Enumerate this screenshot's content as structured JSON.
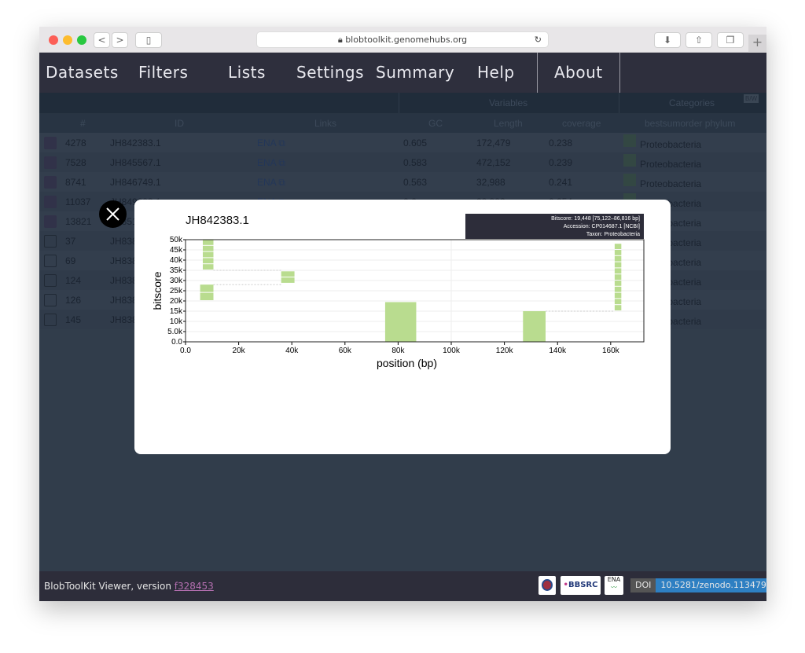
{
  "browser": {
    "url": "blobtoolkit.genomehubs.org",
    "back": "<",
    "forward": ">"
  },
  "nav": {
    "items": [
      "Datasets",
      "Filters",
      "Lists",
      "Settings",
      "Summary",
      "Help",
      "About"
    ]
  },
  "table": {
    "group_headers": {
      "variables": "Variables",
      "categories": "Categories",
      "corner": "B/W"
    },
    "columns": [
      "#",
      "ID",
      "Links",
      "GC",
      "Length",
      "coverage",
      "bestsumorder phylum"
    ],
    "rows": [
      {
        "num": "4278",
        "id": "JH842383.1",
        "link": "ENA",
        "gc": "0.605",
        "length": "172,479",
        "coverage": "0.238",
        "category": "Proteobacteria",
        "selected": true
      },
      {
        "num": "7528",
        "id": "JH845567.1",
        "link": "ENA",
        "gc": "0.583",
        "length": "472,152",
        "coverage": "0.239",
        "category": "Proteobacteria",
        "selected": true
      },
      {
        "num": "8741",
        "id": "JH846749.1",
        "link": "ENA",
        "gc": "0.563",
        "length": "32,988",
        "coverage": "0.241",
        "category": "Proteobacteria",
        "selected": true
      },
      {
        "num": "11037",
        "id": "JH849093.1",
        "link": "ENA",
        "gc": "0.6",
        "length": "22,992",
        "coverage": "0.254",
        "category": "Proteobacteria",
        "selected": true
      },
      {
        "num": "13821",
        "id": "JH851",
        "link": "",
        "gc": "",
        "length": "",
        "coverage": "",
        "category": "Proteobacteria",
        "selected": true
      },
      {
        "num": "37",
        "id": "JH838",
        "link": "",
        "gc": "",
        "length": "",
        "coverage": "",
        "category": "Proteobacteria",
        "selected": false
      },
      {
        "num": "69",
        "id": "JH838",
        "link": "",
        "gc": "",
        "length": "",
        "coverage": "",
        "category": "Proteobacteria",
        "selected": false
      },
      {
        "num": "124",
        "id": "JH838",
        "link": "",
        "gc": "",
        "length": "",
        "coverage": "",
        "category": "Proteobacteria",
        "selected": false
      },
      {
        "num": "126",
        "id": "JH838",
        "link": "",
        "gc": "",
        "length": "",
        "coverage": "",
        "category": "Proteobacteria",
        "selected": false
      },
      {
        "num": "145",
        "id": "JH838",
        "link": "",
        "gc": "",
        "length": "",
        "coverage": "",
        "category": "Proteobacteria",
        "selected": false
      }
    ]
  },
  "modal": {
    "title": "JH842383.1",
    "tooltip": [
      "Bitscore: 19,448 [75,122–86,816 bp]",
      "Accession: CP014687.1 [NCBI]",
      "Taxon: Proteobacteria"
    ]
  },
  "chart_data": {
    "type": "bar",
    "title": "JH842383.1",
    "xlabel": "position (bp)",
    "ylabel": "bitscore",
    "xlim": [
      0,
      172479
    ],
    "ylim": [
      0,
      50000
    ],
    "xticks": [
      "0.0",
      "20k",
      "40k",
      "60k",
      "80k",
      "100k",
      "120k",
      "140k",
      "160k"
    ],
    "yticks": [
      "0.0",
      "5.0k",
      "10k",
      "15k",
      "20k",
      "25k",
      "30k",
      "35k",
      "40k",
      "45k",
      "50k"
    ],
    "color": "#b9dc8f",
    "hits": [
      {
        "start": 6500,
        "end": 10500,
        "bottom": 35000,
        "top": 50000,
        "segments": 5
      },
      {
        "start": 5500,
        "end": 10500,
        "bottom": 20000,
        "top": 28000,
        "segments": 2
      },
      {
        "start": 36000,
        "end": 41000,
        "bottom": 28500,
        "top": 34500,
        "segments": 2
      },
      {
        "start": 75122,
        "end": 86816,
        "bottom": 0,
        "top": 19448,
        "segments": 1
      },
      {
        "start": 127000,
        "end": 135500,
        "bottom": 0,
        "top": 15000,
        "segments": 1
      },
      {
        "start": 161500,
        "end": 164000,
        "bottom": 15000,
        "top": 48000,
        "segments": 11
      }
    ],
    "links": [
      {
        "from": 10500,
        "to": 36000,
        "y": 35000
      },
      {
        "from": 10500,
        "to": 36000,
        "y": 28000
      },
      {
        "from": 135500,
        "to": 161500,
        "y": 15000
      }
    ],
    "grid": true
  },
  "footer": {
    "text": "BlobToolKit Viewer, version ",
    "version": "f328453",
    "bbsrc": "BBSRC",
    "ena": "ENA",
    "doi_label": "DOI",
    "doi": "10.5281/zenodo.1134794"
  }
}
